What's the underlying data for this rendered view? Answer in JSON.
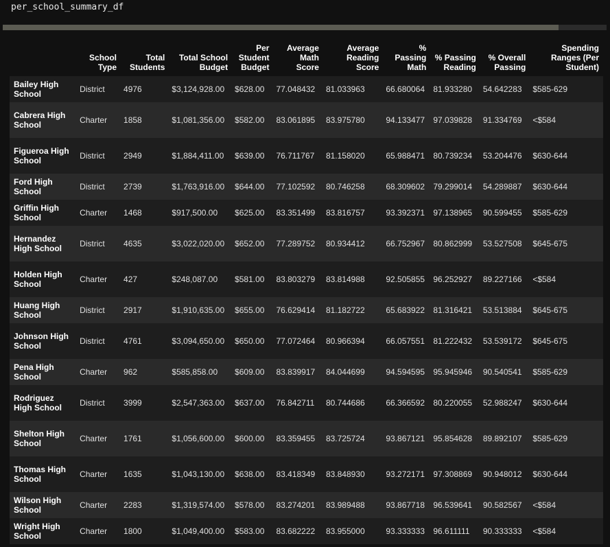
{
  "code": {
    "text": "per_school_summary_df"
  },
  "columns": [
    "School Type",
    "Total Students",
    "Total School Budget",
    "Per Student Budget",
    "Average Math Score",
    "Average Reading Score",
    "% Passing Math",
    "% Passing Reading",
    "% Overall Passing",
    "Spending Ranges (Per Student)"
  ],
  "rows": [
    {
      "name": "Bailey High School",
      "values": [
        "District",
        "4976",
        "$3,124,928.00",
        "$628.00",
        "77.048432",
        "81.033963",
        "66.680064",
        "81.933280",
        "54.642283",
        "$585-629"
      ]
    },
    {
      "name": "Cabrera High School",
      "values": [
        "Charter",
        "1858",
        "$1,081,356.00",
        "$582.00",
        "83.061895",
        "83.975780",
        "94.133477",
        "97.039828",
        "91.334769",
        "<$584"
      ]
    },
    {
      "name": "Figueroa High School",
      "values": [
        "District",
        "2949",
        "$1,884,411.00",
        "$639.00",
        "76.711767",
        "81.158020",
        "65.988471",
        "80.739234",
        "53.204476",
        "$630-644"
      ]
    },
    {
      "name": "Ford High School",
      "values": [
        "District",
        "2739",
        "$1,763,916.00",
        "$644.00",
        "77.102592",
        "80.746258",
        "68.309602",
        "79.299014",
        "54.289887",
        "$630-644"
      ]
    },
    {
      "name": "Griffin High School",
      "values": [
        "Charter",
        "1468",
        "$917,500.00",
        "$625.00",
        "83.351499",
        "83.816757",
        "93.392371",
        "97.138965",
        "90.599455",
        "$585-629"
      ]
    },
    {
      "name": "Hernandez High School",
      "values": [
        "District",
        "4635",
        "$3,022,020.00",
        "$652.00",
        "77.289752",
        "80.934412",
        "66.752967",
        "80.862999",
        "53.527508",
        "$645-675"
      ]
    },
    {
      "name": "Holden High School",
      "values": [
        "Charter",
        "427",
        "$248,087.00",
        "$581.00",
        "83.803279",
        "83.814988",
        "92.505855",
        "96.252927",
        "89.227166",
        "<$584"
      ]
    },
    {
      "name": "Huang High School",
      "values": [
        "District",
        "2917",
        "$1,910,635.00",
        "$655.00",
        "76.629414",
        "81.182722",
        "65.683922",
        "81.316421",
        "53.513884",
        "$645-675"
      ]
    },
    {
      "name": "Johnson High School",
      "values": [
        "District",
        "4761",
        "$3,094,650.00",
        "$650.00",
        "77.072464",
        "80.966394",
        "66.057551",
        "81.222432",
        "53.539172",
        "$645-675"
      ]
    },
    {
      "name": "Pena High School",
      "values": [
        "Charter",
        "962",
        "$585,858.00",
        "$609.00",
        "83.839917",
        "84.044699",
        "94.594595",
        "95.945946",
        "90.540541",
        "$585-629"
      ]
    },
    {
      "name": "Rodriguez High School",
      "values": [
        "District",
        "3999",
        "$2,547,363.00",
        "$637.00",
        "76.842711",
        "80.744686",
        "66.366592",
        "80.220055",
        "52.988247",
        "$630-644"
      ]
    },
    {
      "name": "Shelton High School",
      "values": [
        "Charter",
        "1761",
        "$1,056,600.00",
        "$600.00",
        "83.359455",
        "83.725724",
        "93.867121",
        "95.854628",
        "89.892107",
        "$585-629"
      ]
    },
    {
      "name": "Thomas High School",
      "values": [
        "Charter",
        "1635",
        "$1,043,130.00",
        "$638.00",
        "83.418349",
        "83.848930",
        "93.272171",
        "97.308869",
        "90.948012",
        "$630-644"
      ]
    },
    {
      "name": "Wilson High School",
      "values": [
        "Charter",
        "2283",
        "$1,319,574.00",
        "$578.00",
        "83.274201",
        "83.989488",
        "93.867718",
        "96.539641",
        "90.582567",
        "<$584"
      ]
    },
    {
      "name": "Wright High School",
      "values": [
        "Charter",
        "1800",
        "$1,049,400.00",
        "$583.00",
        "83.682222",
        "83.955000",
        "93.333333",
        "96.611111",
        "90.333333",
        "<$584"
      ]
    }
  ]
}
